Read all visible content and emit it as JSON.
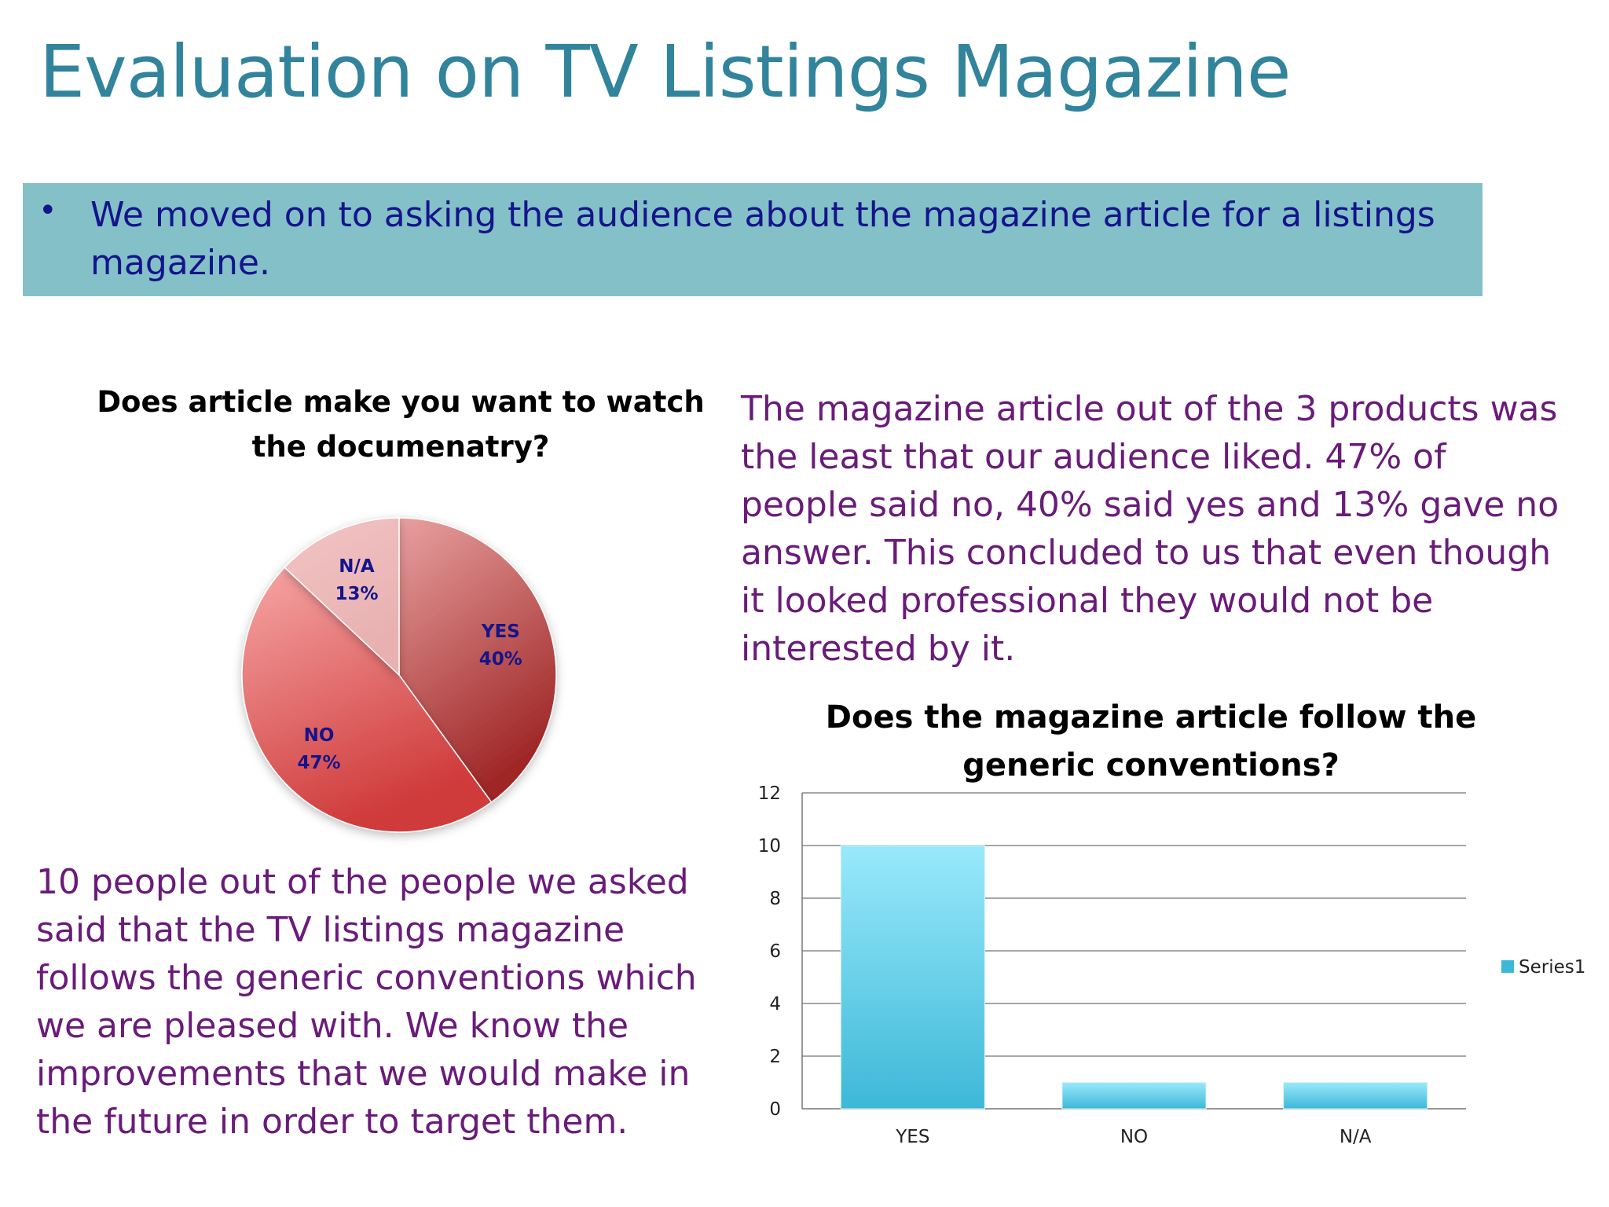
{
  "slide": {
    "title": "Evaluation on TV Listings Magazine",
    "bullet": "•",
    "band_text": "We moved on to asking the audience about the magazine article for a listings magazine.",
    "right_paragraph": "The magazine article out of the 3 products was the least that our audience liked. 47% of people said no, 40% said yes and 13% gave no answer. This concluded to us that even though it looked professional they would not be interested by it.",
    "left_paragraph": "10 people out of the people we asked said that the TV listings magazine follows the generic conventions which we are pleased with. We know the improvements that we would make in the future in order to target them."
  },
  "chart_data": [
    {
      "type": "pie",
      "title": "Does article make you want to watch the documenatry?",
      "slices": [
        {
          "label": "YES",
          "value": 40,
          "display": "40%",
          "color_light": "#e8a0a0",
          "color_dark": "#a02828"
        },
        {
          "label": "NO",
          "value": 47,
          "display": "47%",
          "color_light": "#f7a6a6",
          "color_dark": "#cf3a3a"
        },
        {
          "label": "N/A",
          "value": 13,
          "display": "13%",
          "color_light": "#f2c4c4",
          "color_dark": "#e8b0b0"
        }
      ]
    },
    {
      "type": "bar",
      "title": "Does the magazine article follow the generic conventions?",
      "categories": [
        "YES",
        "NO",
        "N/A"
      ],
      "series": [
        {
          "name": "Series1",
          "values": [
            10,
            1,
            1
          ],
          "color_light": "#99e9fb",
          "color_dark": "#3db8d8"
        }
      ],
      "ylim": [
        0,
        12
      ],
      "yticks": [
        0,
        2,
        4,
        6,
        8,
        10,
        12
      ],
      "grid": true,
      "legend_position": "right"
    }
  ]
}
